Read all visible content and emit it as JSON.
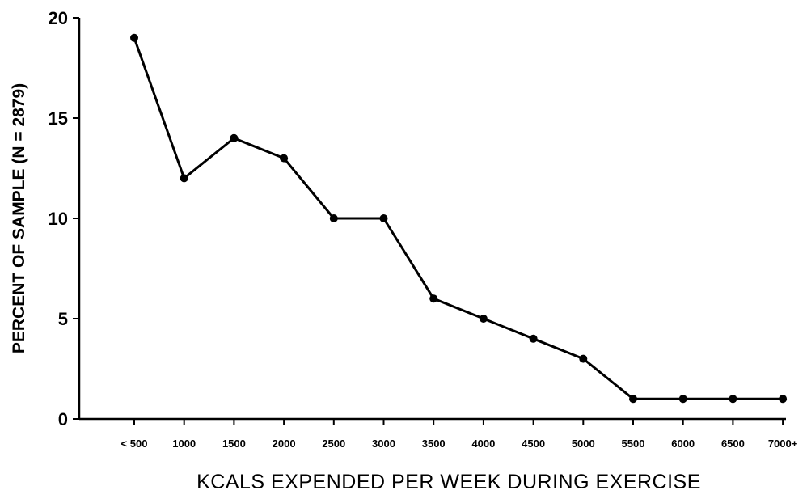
{
  "chart_data": {
    "type": "line",
    "title": "",
    "xlabel": "KCALS EXPENDED PER WEEK DURING EXERCISE",
    "ylabel": "PERCENT OF SAMPLE (N = 2879)",
    "ylim": [
      0,
      20
    ],
    "yticks": [
      "0",
      "5",
      "10",
      "15",
      "20"
    ],
    "grid": false,
    "legend": "none",
    "categories": [
      "< 500",
      "1000",
      "1500",
      "2000",
      "2500",
      "3000",
      "3500",
      "4000",
      "4500",
      "5000",
      "5500",
      "6000",
      "6500",
      "7000+"
    ],
    "series": [
      {
        "values": [
          19,
          12,
          14,
          13,
          10,
          10,
          6,
          5,
          4,
          3,
          1,
          1,
          1,
          1
        ],
        "color": "#000000"
      }
    ]
  }
}
